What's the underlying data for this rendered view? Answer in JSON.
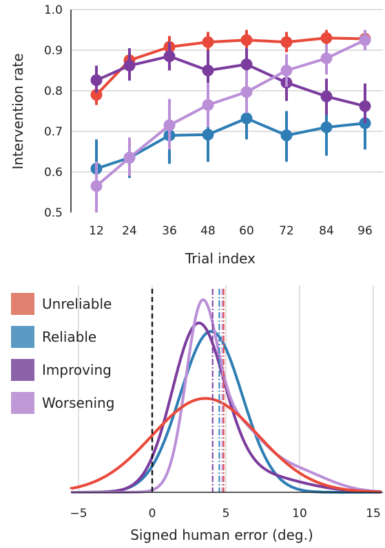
{
  "chart_data": [
    {
      "type": "line",
      "xlabel": "Trial index",
      "ylabel": "Intervention rate",
      "x": [
        12,
        24,
        36,
        48,
        60,
        72,
        84,
        96
      ],
      "xticks": [
        "12",
        "24",
        "36",
        "48",
        "60",
        "72",
        "84",
        "96"
      ],
      "ylim": [
        0.5,
        1.0
      ],
      "yticks": [
        "0.5",
        "0.6",
        "0.7",
        "0.8",
        "0.9",
        "1.0"
      ],
      "grid": "horizontal",
      "series": [
        {
          "color": "#e8493a",
          "values": [
            0.79,
            0.875,
            0.908,
            0.92,
            0.925,
            0.92,
            0.93,
            0.928
          ],
          "err_low": [
            0.765,
            0.86,
            0.885,
            0.895,
            0.9,
            0.895,
            0.91,
            0.905
          ],
          "err_high": [
            0.82,
            0.895,
            0.935,
            0.945,
            0.95,
            0.945,
            0.95,
            0.95
          ]
        },
        {
          "color": "#2e7eb5",
          "values": [
            0.608,
            0.635,
            0.69,
            0.692,
            0.732,
            0.69,
            0.71,
            0.72
          ],
          "err_low": [
            0.54,
            0.585,
            0.62,
            0.625,
            0.68,
            0.625,
            0.64,
            0.655
          ],
          "err_high": [
            0.68,
            0.68,
            0.755,
            0.76,
            0.79,
            0.75,
            0.785,
            0.785
          ]
        },
        {
          "color": "#7b3c9e",
          "values": [
            0.826,
            0.862,
            0.885,
            0.85,
            0.865,
            0.82,
            0.786,
            0.762
          ],
          "err_low": [
            0.795,
            0.825,
            0.85,
            0.8,
            0.825,
            0.775,
            0.74,
            0.72
          ],
          "err_high": [
            0.862,
            0.905,
            0.92,
            0.9,
            0.905,
            0.865,
            0.83,
            0.818
          ]
        },
        {
          "color": "#bb8fd8",
          "values": [
            0.565,
            0.635,
            0.715,
            0.765,
            0.797,
            0.85,
            0.88,
            0.925
          ],
          "err_low": [
            0.5,
            0.59,
            0.655,
            0.71,
            0.745,
            0.81,
            0.84,
            0.9
          ],
          "err_high": [
            0.625,
            0.685,
            0.78,
            0.82,
            0.85,
            0.89,
            0.915,
            0.95
          ]
        }
      ]
    },
    {
      "type": "area",
      "xlabel": "Signed human error (deg.)",
      "xlim": [
        -5.5,
        15.5
      ],
      "xticks": [
        -5,
        0,
        5,
        10,
        15
      ],
      "xtick_labels": [
        "−5",
        "0",
        "5",
        "10",
        "15"
      ],
      "grid": "vertical",
      "legend": "top-left",
      "reference_line": 0,
      "series": [
        {
          "name": "Unreliable",
          "color": "#e8493a",
          "swatch": "#e0806e",
          "mean": 4.85,
          "components": [
            {
              "w": 1.0,
              "mu": 3.6,
              "sd": 3.6
            }
          ]
        },
        {
          "name": "Reliable",
          "color": "#2e7eb5",
          "swatch": "#5b9ac3",
          "mean": 4.55,
          "components": [
            {
              "w": 1.0,
              "mu": 4.0,
              "sd": 2.1
            }
          ]
        },
        {
          "name": "Improving",
          "color": "#7b3c9e",
          "swatch": "#8c62a8",
          "mean": 4.1,
          "components": [
            {
              "w": 0.82,
              "mu": 3.1,
              "sd": 1.75
            },
            {
              "w": 0.18,
              "mu": 6.5,
              "sd": 3.2
            }
          ]
        },
        {
          "name": "Worsening",
          "color": "#bb8fd8",
          "swatch": "#c09ad6",
          "mean": 4.75,
          "components": [
            {
              "w": 0.48,
              "mu": 3.3,
              "sd": 1.05
            },
            {
              "w": 0.37,
              "mu": 5.4,
              "sd": 1.9
            },
            {
              "w": 0.15,
              "mu": 9.5,
              "sd": 2.3
            }
          ]
        }
      ]
    }
  ]
}
